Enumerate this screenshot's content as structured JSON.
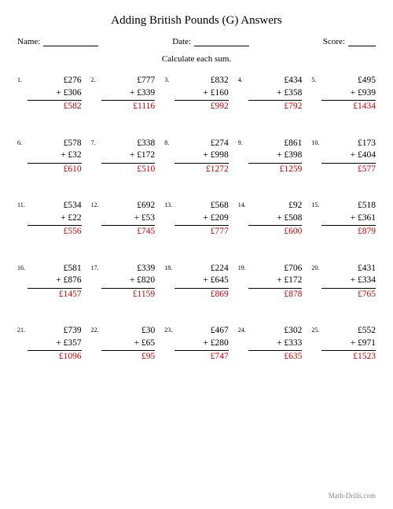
{
  "title": "Adding British Pounds (G) Answers",
  "meta": {
    "name_label": "Name:",
    "date_label": "Date:",
    "score_label": "Score:"
  },
  "instruction": "Calculate each sum.",
  "footer": "Math-Drills.com",
  "currency": "£",
  "plus": "+",
  "problems": [
    {
      "n": "1.",
      "a": "£276",
      "b": "+ £306",
      "ans": "£582"
    },
    {
      "n": "2.",
      "a": "£777",
      "b": "+ £339",
      "ans": "£1116"
    },
    {
      "n": "3.",
      "a": "£832",
      "b": "+ £160",
      "ans": "£992"
    },
    {
      "n": "4.",
      "a": "£434",
      "b": "+ £358",
      "ans": "£792"
    },
    {
      "n": "5.",
      "a": "£495",
      "b": "+ £939",
      "ans": "£1434"
    },
    {
      "n": "6.",
      "a": "£578",
      "b": "+ £32",
      "ans": "£610"
    },
    {
      "n": "7.",
      "a": "£338",
      "b": "+ £172",
      "ans": "£510"
    },
    {
      "n": "8.",
      "a": "£274",
      "b": "+ £998",
      "ans": "£1272"
    },
    {
      "n": "9.",
      "a": "£861",
      "b": "+ £398",
      "ans": "£1259"
    },
    {
      "n": "10.",
      "a": "£173",
      "b": "+ £404",
      "ans": "£577"
    },
    {
      "n": "11.",
      "a": "£534",
      "b": "+ £22",
      "ans": "£556"
    },
    {
      "n": "12.",
      "a": "£692",
      "b": "+ £53",
      "ans": "£745"
    },
    {
      "n": "13.",
      "a": "£568",
      "b": "+ £209",
      "ans": "£777"
    },
    {
      "n": "14.",
      "a": "£92",
      "b": "+ £508",
      "ans": "£600"
    },
    {
      "n": "15.",
      "a": "£518",
      "b": "+ £361",
      "ans": "£879"
    },
    {
      "n": "16.",
      "a": "£581",
      "b": "+ £876",
      "ans": "£1457"
    },
    {
      "n": "17.",
      "a": "£339",
      "b": "+ £820",
      "ans": "£1159"
    },
    {
      "n": "18.",
      "a": "£224",
      "b": "+ £645",
      "ans": "£869"
    },
    {
      "n": "19.",
      "a": "£706",
      "b": "+ £172",
      "ans": "£878"
    },
    {
      "n": "20.",
      "a": "£431",
      "b": "+ £334",
      "ans": "£765"
    },
    {
      "n": "21.",
      "a": "£739",
      "b": "+ £357",
      "ans": "£1096"
    },
    {
      "n": "22.",
      "a": "£30",
      "b": "+ £65",
      "ans": "£95"
    },
    {
      "n": "23.",
      "a": "£467",
      "b": "+ £280",
      "ans": "£747"
    },
    {
      "n": "24.",
      "a": "£302",
      "b": "+ £333",
      "ans": "£635"
    },
    {
      "n": "25.",
      "a": "£552",
      "b": "+ £971",
      "ans": "£1523"
    }
  ]
}
